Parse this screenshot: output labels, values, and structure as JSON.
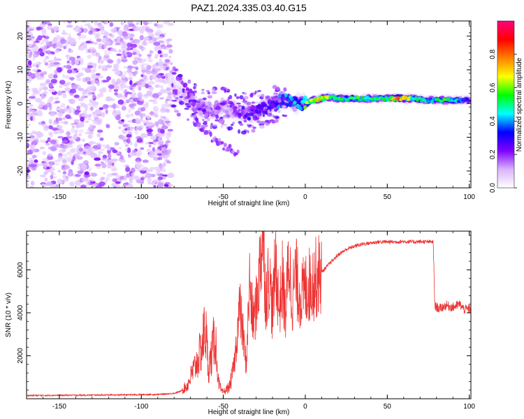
{
  "figure": {
    "title": "PAZ1.2024.335.03.40.G15"
  },
  "chart_data": [
    {
      "type": "heatmap",
      "title": "PAZ1.2024.335.03.40.G15",
      "xlabel": "Height of straight line (km)",
      "ylabel": "Frequency (Hz)",
      "xlim": [
        -170,
        101
      ],
      "ylim": [
        -25,
        24.5
      ],
      "x_ticks": [
        -150,
        -100,
        -50,
        0,
        50,
        100
      ],
      "y_ticks": [
        -20,
        -10,
        0,
        10,
        20
      ],
      "colorbar": {
        "label": "Normalized spectral amplitude",
        "range": [
          0,
          1
        ],
        "ticks": [
          0.0,
          0.2,
          0.4,
          0.6,
          0.8
        ],
        "tick_labels": [
          "0.0",
          "0.2",
          "0.4",
          "0.6",
          "0.8"
        ],
        "colors": [
          "#ffffff",
          "#d9b3ff",
          "#8000ff",
          "#0000ff",
          "#00ffff",
          "#00ff00",
          "#ffff00",
          "#ff8000",
          "#ff0000",
          "#ff0080"
        ]
      },
      "noise_region": {
        "x_range": [
          -170,
          -82
        ],
        "typical_amplitude": 0.05
      },
      "signal_ridge": [
        {
          "x": -82,
          "freq": 6.5,
          "amp": 0.06
        },
        {
          "x": -78,
          "freq": 3.0,
          "amp": 0.08
        },
        {
          "x": -74,
          "freq": 1.5,
          "amp": 0.12
        },
        {
          "x": -70,
          "freq": 0.5,
          "amp": 0.15
        },
        {
          "x": -65,
          "freq": -1.0,
          "amp": 0.18
        },
        {
          "x": -60,
          "freq": -2.0,
          "amp": 0.22
        },
        {
          "x": -55,
          "freq": -1.5,
          "amp": 0.2
        },
        {
          "x": -50,
          "freq": -1.0,
          "amp": 0.16
        },
        {
          "x": -45,
          "freq": -2.0,
          "amp": 0.15
        },
        {
          "x": -40,
          "freq": -2.5,
          "amp": 0.22
        },
        {
          "x": -35,
          "freq": -3.0,
          "amp": 0.3
        },
        {
          "x": -30,
          "freq": -2.5,
          "amp": 0.3
        },
        {
          "x": -25,
          "freq": -1.5,
          "amp": 0.32
        },
        {
          "x": -20,
          "freq": -0.5,
          "amp": 0.35
        },
        {
          "x": -15,
          "freq": 1.0,
          "amp": 0.4
        },
        {
          "x": -10,
          "freq": 1.0,
          "amp": 0.42
        },
        {
          "x": -5,
          "freq": 0.0,
          "amp": 0.45
        },
        {
          "x": 0,
          "freq": 0.0,
          "amp": 0.6
        },
        {
          "x": 5,
          "freq": 1.0,
          "amp": 0.7
        },
        {
          "x": 10,
          "freq": 1.5,
          "amp": 0.75
        },
        {
          "x": 15,
          "freq": 2.0,
          "amp": 0.6
        },
        {
          "x": 20,
          "freq": 1.5,
          "amp": 0.55
        },
        {
          "x": 30,
          "freq": 1.5,
          "amp": 0.55
        },
        {
          "x": 40,
          "freq": 1.5,
          "amp": 0.55
        },
        {
          "x": 50,
          "freq": 1.5,
          "amp": 0.55
        },
        {
          "x": 55,
          "freq": 1.5,
          "amp": 0.92
        },
        {
          "x": 60,
          "freq": 1.5,
          "amp": 0.9
        },
        {
          "x": 65,
          "freq": 1.5,
          "amp": 0.55
        },
        {
          "x": 70,
          "freq": 1.2,
          "amp": 0.5
        },
        {
          "x": 75,
          "freq": 1.0,
          "amp": 0.45
        },
        {
          "x": 80,
          "freq": 1.0,
          "amp": 0.5
        },
        {
          "x": 85,
          "freq": 1.0,
          "amp": 0.55
        },
        {
          "x": 90,
          "freq": 1.0,
          "amp": 0.5
        },
        {
          "x": 95,
          "freq": 1.0,
          "amp": 0.4
        },
        {
          "x": 100,
          "freq": 1.0,
          "amp": 0.3
        }
      ],
      "signal_branch": [
        {
          "x": -80,
          "freq": 10.0
        },
        {
          "x": -75,
          "freq": 6.0
        },
        {
          "x": -70,
          "freq": 3.0
        },
        {
          "x": -66,
          "freq": -5.0
        },
        {
          "x": -62,
          "freq": -8.0
        },
        {
          "x": -55,
          "freq": -11.0
        },
        {
          "x": -48,
          "freq": -13.0
        },
        {
          "x": -40,
          "freq": -15.0
        }
      ]
    },
    {
      "type": "line",
      "xlabel": "Height of straight line (km)",
      "ylabel": "SNR (10 * v/v)",
      "xlim": [
        -170,
        101
      ],
      "ylim": [
        0,
        7800
      ],
      "x_ticks": [
        -150,
        -100,
        -50,
        0,
        50,
        100
      ],
      "y_ticks": [
        2000,
        4000,
        6000
      ],
      "color": "#ee3333",
      "series": [
        {
          "x": [
            -170,
            -150,
            -130,
            -110,
            -90,
            -80,
            -76,
            -72,
            -69,
            -66,
            -63,
            -61,
            -59,
            -57,
            -55,
            -53,
            -51,
            -49,
            -46,
            -43,
            -40,
            -38,
            -36,
            -34,
            -32,
            -30,
            -28,
            -26,
            -24,
            -22,
            -20,
            -18,
            -16,
            -14,
            -12,
            -10,
            -8,
            -6,
            -4,
            -2,
            0,
            5,
            10,
            15,
            20,
            25,
            30,
            35,
            40,
            45,
            50,
            55,
            60,
            65,
            70,
            75,
            78,
            79,
            82,
            86,
            90,
            94,
            97,
            101
          ],
          "y": [
            150,
            160,
            170,
            180,
            200,
            250,
            350,
            600,
            1200,
            1700,
            2400,
            3400,
            1400,
            2100,
            3000,
            800,
            300,
            350,
            600,
            1800,
            4300,
            3000,
            1500,
            5400,
            3600,
            4200,
            5900,
            7800,
            4700,
            5800,
            4000,
            6500,
            4100,
            5500,
            3900,
            6600,
            4600,
            5800,
            5000,
            4800,
            5100,
            5500,
            5900,
            6300,
            6700,
            6950,
            7100,
            7200,
            7250,
            7300,
            7300,
            7300,
            7320,
            7300,
            7310,
            7300,
            7300,
            4300,
            4200,
            4350,
            4250,
            4400,
            4150,
            4200
          ]
        }
      ]
    }
  ]
}
